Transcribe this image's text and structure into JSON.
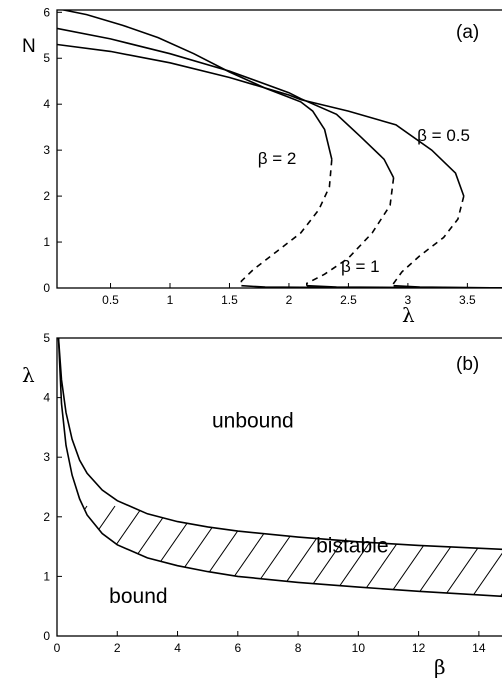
{
  "chart_data": [
    {
      "panel": "(a)",
      "type": "line",
      "title": "",
      "xlabel": "λ",
      "ylabel": "N",
      "xlim": [
        0.05,
        3.85
      ],
      "ylim": [
        0,
        6.05
      ],
      "xticks": [
        "0.5",
        "1",
        "1.5",
        "2",
        "2.5",
        "3",
        "3.5"
      ],
      "yticks": [
        "0",
        "1",
        "2",
        "3",
        "4",
        "5",
        "6"
      ],
      "xtick_values": [
        0.5,
        1,
        1.5,
        2,
        2.5,
        3,
        3.5
      ],
      "ytick_values": [
        0,
        1,
        2,
        3,
        4,
        5,
        6
      ],
      "annotations": [
        {
          "text": "β = 2",
          "x": 1.9,
          "y": 2.7
        },
        {
          "text": "β = 1",
          "x": 2.6,
          "y": 0.35
        },
        {
          "text": "β = 0.5",
          "x": 3.3,
          "y": 3.2
        }
      ],
      "series": [
        {
          "label": "β = 2",
          "stable": [
            [
              0.05,
              6.08
            ],
            [
              0.3,
              5.95
            ],
            [
              0.6,
              5.72
            ],
            [
              0.9,
              5.45
            ],
            [
              1.2,
              5.1
            ],
            [
              1.5,
              4.7
            ],
            [
              1.8,
              4.35
            ],
            [
              2.0,
              4.15
            ],
            [
              2.1,
              4.05
            ],
            [
              2.2,
              3.85
            ],
            [
              2.3,
              3.45
            ],
            [
              2.36,
              2.8
            ]
          ],
          "unstable": [
            [
              2.36,
              2.8
            ],
            [
              2.34,
              2.2
            ],
            [
              2.25,
              1.7
            ],
            [
              2.1,
              1.2
            ],
            [
              1.9,
              0.8
            ],
            [
              1.7,
              0.4
            ],
            [
              1.6,
              0.15
            ],
            [
              1.6,
              0.05
            ]
          ],
          "bottom": [
            [
              1.6,
              0.05
            ],
            [
              1.8,
              0.02
            ],
            [
              2.4,
              0.01
            ],
            [
              3.85,
              0.0
            ]
          ]
        },
        {
          "label": "β = 1",
          "stable": [
            [
              0.05,
              5.65
            ],
            [
              0.5,
              5.42
            ],
            [
              1.0,
              5.1
            ],
            [
              1.5,
              4.72
            ],
            [
              2.0,
              4.25
            ],
            [
              2.1,
              4.12
            ],
            [
              2.4,
              3.78
            ],
            [
              2.6,
              3.3
            ],
            [
              2.8,
              2.8
            ],
            [
              2.88,
              2.4
            ]
          ],
          "unstable": [
            [
              2.88,
              2.4
            ],
            [
              2.85,
              1.8
            ],
            [
              2.7,
              1.2
            ],
            [
              2.5,
              0.65
            ],
            [
              2.3,
              0.3
            ],
            [
              2.15,
              0.1
            ],
            [
              2.15,
              0.05
            ]
          ],
          "bottom": [
            [
              2.15,
              0.05
            ],
            [
              2.4,
              0.02
            ],
            [
              3.0,
              0.01
            ],
            [
              3.85,
              0.0
            ]
          ]
        },
        {
          "label": "β = 0.5",
          "stable": [
            [
              0.05,
              5.3
            ],
            [
              0.5,
              5.15
            ],
            [
              1.0,
              4.9
            ],
            [
              1.5,
              4.58
            ],
            [
              2.0,
              4.2
            ],
            [
              2.1,
              4.1
            ],
            [
              2.5,
              3.85
            ],
            [
              2.9,
              3.55
            ],
            [
              3.2,
              3.0
            ],
            [
              3.4,
              2.5
            ],
            [
              3.47,
              2.0
            ]
          ],
          "unstable": [
            [
              3.47,
              2.0
            ],
            [
              3.42,
              1.5
            ],
            [
              3.3,
              1.1
            ],
            [
              3.1,
              0.7
            ],
            [
              2.95,
              0.35
            ],
            [
              2.88,
              0.1
            ],
            [
              2.88,
              0.05
            ]
          ],
          "bottom": [
            [
              2.88,
              0.05
            ],
            [
              3.1,
              0.02
            ],
            [
              3.5,
              0.01
            ],
            [
              3.85,
              0.0
            ]
          ]
        }
      ]
    },
    {
      "panel": "(b)",
      "type": "area",
      "title": "",
      "xlabel": "β",
      "ylabel": "λ",
      "xlim": [
        0,
        15
      ],
      "ylim": [
        0,
        5
      ],
      "xticks": [
        "0",
        "2",
        "4",
        "6",
        "8",
        "10",
        "12",
        "14"
      ],
      "yticks": [
        "0",
        "1",
        "2",
        "3",
        "4",
        "5"
      ],
      "xtick_values": [
        0,
        2,
        4,
        6,
        8,
        10,
        12,
        14
      ],
      "ytick_values": [
        0,
        1,
        2,
        3,
        4,
        5
      ],
      "region_labels": [
        {
          "text": "unbound",
          "x": 6.5,
          "y": 3.5
        },
        {
          "text": "bistable",
          "x": 9.8,
          "y": 1.4
        },
        {
          "text": "bound",
          "x": 2.7,
          "y": 0.55
        }
      ],
      "upper_boundary": [
        [
          0.05,
          5.0
        ],
        [
          0.15,
          4.3
        ],
        [
          0.3,
          3.75
        ],
        [
          0.5,
          3.3
        ],
        [
          0.75,
          2.95
        ],
        [
          1.0,
          2.73
        ],
        [
          1.5,
          2.45
        ],
        [
          2.0,
          2.27
        ],
        [
          3.0,
          2.05
        ],
        [
          4.0,
          1.92
        ],
        [
          5.0,
          1.83
        ],
        [
          6.0,
          1.76
        ],
        [
          8.0,
          1.66
        ],
        [
          10.0,
          1.58
        ],
        [
          12.0,
          1.52
        ],
        [
          15.0,
          1.45
        ]
      ],
      "lower_boundary": [
        [
          0.05,
          5.0
        ],
        [
          0.15,
          3.9
        ],
        [
          0.3,
          3.2
        ],
        [
          0.5,
          2.7
        ],
        [
          0.75,
          2.3
        ],
        [
          1.0,
          2.03
        ],
        [
          1.5,
          1.72
        ],
        [
          2.0,
          1.53
        ],
        [
          3.0,
          1.31
        ],
        [
          4.0,
          1.18
        ],
        [
          5.0,
          1.08
        ],
        [
          6.0,
          1.0
        ],
        [
          8.0,
          0.9
        ],
        [
          10.0,
          0.82
        ],
        [
          12.0,
          0.75
        ],
        [
          15.0,
          0.66
        ]
      ]
    }
  ]
}
